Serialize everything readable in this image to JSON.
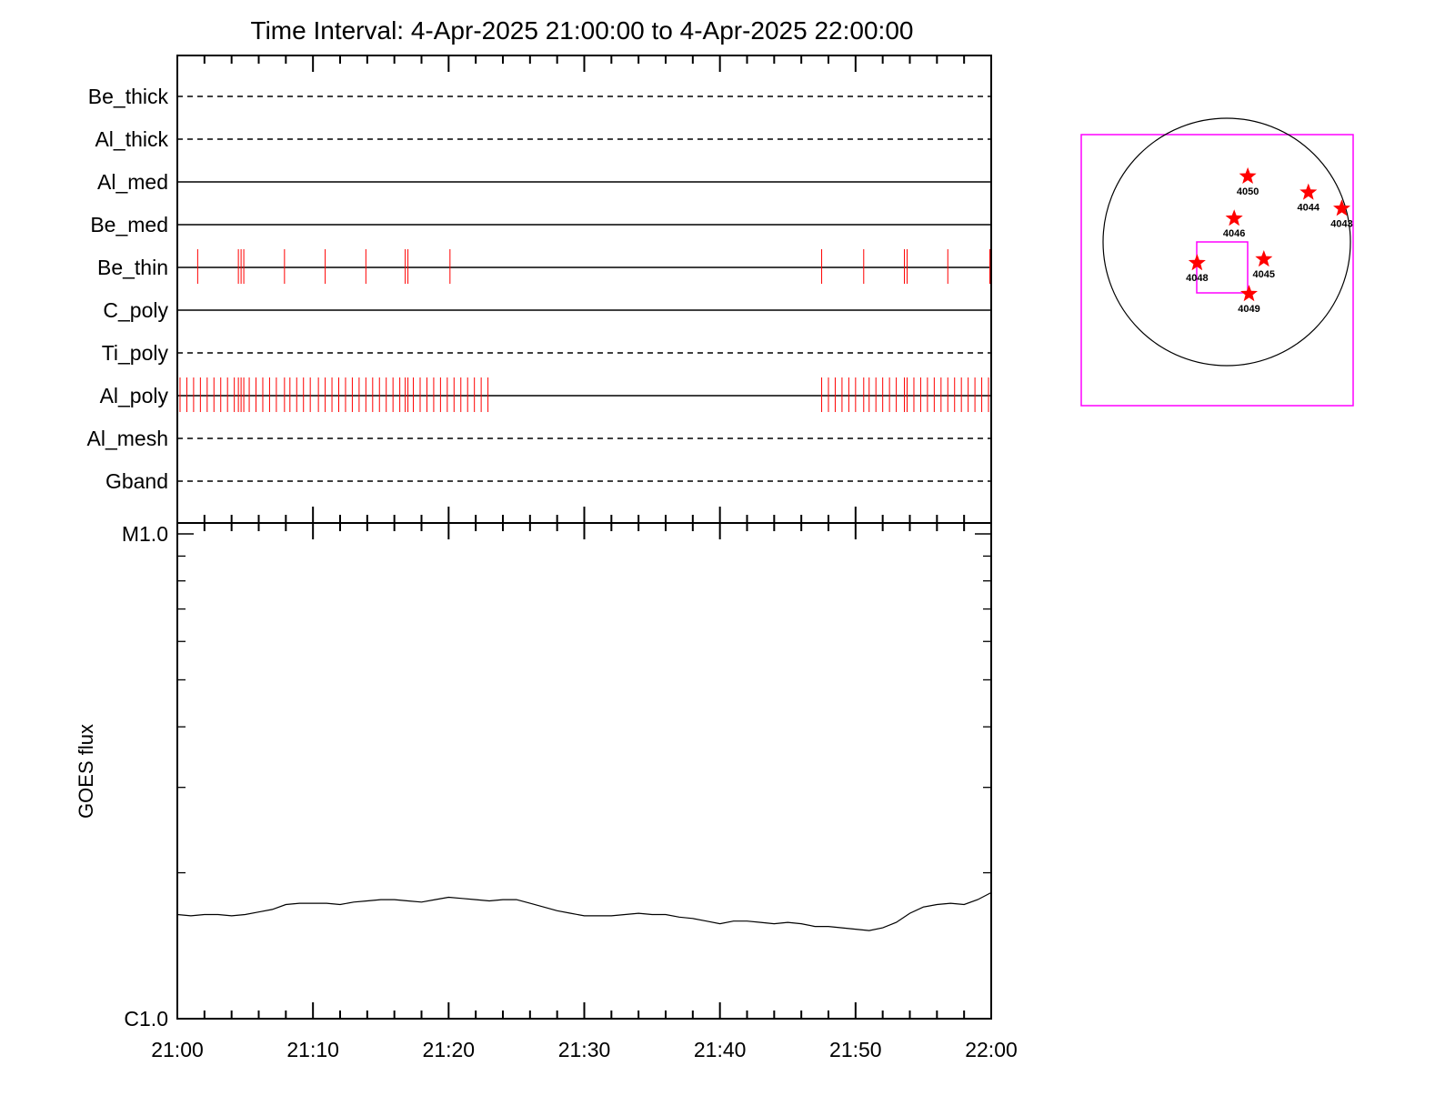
{
  "chart_data": {
    "type": "line",
    "title": "Time Interval:  4-Apr-2025 21:00:00 to  4-Apr-2025 22:00:00",
    "filters": [
      {
        "name": "Be_thick",
        "style": "dashed",
        "events": []
      },
      {
        "name": "Al_thick",
        "style": "dashed",
        "events": []
      },
      {
        "name": "Al_med",
        "style": "solid",
        "events": []
      },
      {
        "name": "Be_med",
        "style": "solid",
        "events": []
      },
      {
        "name": "Be_thin",
        "style": "solid",
        "events": [
          1.5,
          4.5,
          4.7,
          4.9,
          7.9,
          10.9,
          13.9,
          16.8,
          17.0,
          20.1,
          47.5,
          50.6,
          53.6,
          53.8,
          56.8,
          59.9
        ]
      },
      {
        "name": "C_poly",
        "style": "solid",
        "events": []
      },
      {
        "name": "Ti_poly",
        "style": "dashed",
        "events": []
      },
      {
        "name": "Al_poly",
        "style": "solid",
        "events": [
          0.2,
          0.7,
          1.2,
          1.7,
          2.2,
          2.7,
          3.2,
          3.7,
          4.2,
          4.5,
          4.7,
          4.9,
          5.3,
          5.8,
          6.3,
          6.8,
          7.3,
          7.9,
          8.3,
          8.8,
          9.3,
          9.8,
          10.4,
          10.9,
          11.4,
          11.9,
          12.4,
          12.9,
          13.4,
          13.9,
          14.4,
          14.9,
          15.4,
          15.9,
          16.4,
          16.8,
          17.0,
          17.4,
          17.9,
          18.4,
          18.9,
          19.4,
          19.9,
          20.4,
          20.9,
          21.4,
          21.9,
          22.4,
          22.9,
          47.5,
          48.0,
          48.5,
          49.0,
          49.5,
          50.0,
          50.6,
          51.0,
          51.5,
          52.0,
          52.5,
          53.0,
          53.6,
          53.8,
          54.3,
          54.8,
          55.3,
          55.8,
          56.3,
          56.8,
          57.3,
          57.8,
          58.3,
          58.8,
          59.3,
          59.8
        ]
      },
      {
        "name": "Al_mesh",
        "style": "dashed",
        "events": []
      },
      {
        "name": "Gband",
        "style": "dashed",
        "events": []
      }
    ],
    "x_ticks": [
      "21:00",
      "21:10",
      "21:20",
      "21:30",
      "21:40",
      "21:50",
      "22:00"
    ],
    "xlim_minutes": [
      0,
      60
    ],
    "ylabel": "GOES flux",
    "y_ticks": [
      "M1.0",
      "C1.0"
    ],
    "ylim": [
      1e-06,
      1e-05
    ],
    "yscale": "log",
    "goes_series": {
      "x": [
        0,
        1,
        2,
        3,
        4,
        5,
        6,
        7,
        8,
        9,
        10,
        11,
        12,
        13,
        14,
        15,
        16,
        17,
        18,
        19,
        20,
        21,
        22,
        23,
        24,
        25,
        26,
        27,
        28,
        29,
        30,
        31,
        32,
        33,
        34,
        35,
        36,
        37,
        38,
        39,
        40,
        41,
        42,
        43,
        44,
        45,
        46,
        47,
        48,
        49,
        50,
        51,
        52,
        53,
        54,
        55,
        56,
        57,
        58,
        59,
        60
      ],
      "y": [
        1.64e-06,
        1.63e-06,
        1.64e-06,
        1.64e-06,
        1.63e-06,
        1.64e-06,
        1.66e-06,
        1.68e-06,
        1.72e-06,
        1.73e-06,
        1.73e-06,
        1.73e-06,
        1.72e-06,
        1.74e-06,
        1.75e-06,
        1.76e-06,
        1.76e-06,
        1.75e-06,
        1.74e-06,
        1.76e-06,
        1.78e-06,
        1.77e-06,
        1.76e-06,
        1.75e-06,
        1.76e-06,
        1.76e-06,
        1.73e-06,
        1.7e-06,
        1.67e-06,
        1.65e-06,
        1.63e-06,
        1.63e-06,
        1.63e-06,
        1.64e-06,
        1.65e-06,
        1.64e-06,
        1.64e-06,
        1.62e-06,
        1.61e-06,
        1.59e-06,
        1.57e-06,
        1.59e-06,
        1.59e-06,
        1.58e-06,
        1.57e-06,
        1.58e-06,
        1.57e-06,
        1.55e-06,
        1.55e-06,
        1.54e-06,
        1.53e-06,
        1.52e-06,
        1.54e-06,
        1.58e-06,
        1.65e-06,
        1.7e-06,
        1.72e-06,
        1.73e-06,
        1.72e-06,
        1.76e-06,
        1.82e-06
      ]
    },
    "solar_map": {
      "active_regions": [
        {
          "id": "4050",
          "x": 0.17,
          "y": 0.53
        },
        {
          "id": "4044",
          "x": 0.66,
          "y": 0.4
        },
        {
          "id": "4043",
          "x": 0.93,
          "y": 0.27
        },
        {
          "id": "4046",
          "x": 0.06,
          "y": 0.19
        },
        {
          "id": "4048",
          "x": -0.24,
          "y": -0.17
        },
        {
          "id": "4045",
          "x": 0.3,
          "y": -0.14
        },
        {
          "id": "4049",
          "x": 0.18,
          "y": -0.42
        }
      ],
      "colors": {
        "box": "#ff00ff",
        "star": "#ff0000",
        "disk": "#000000"
      }
    }
  }
}
